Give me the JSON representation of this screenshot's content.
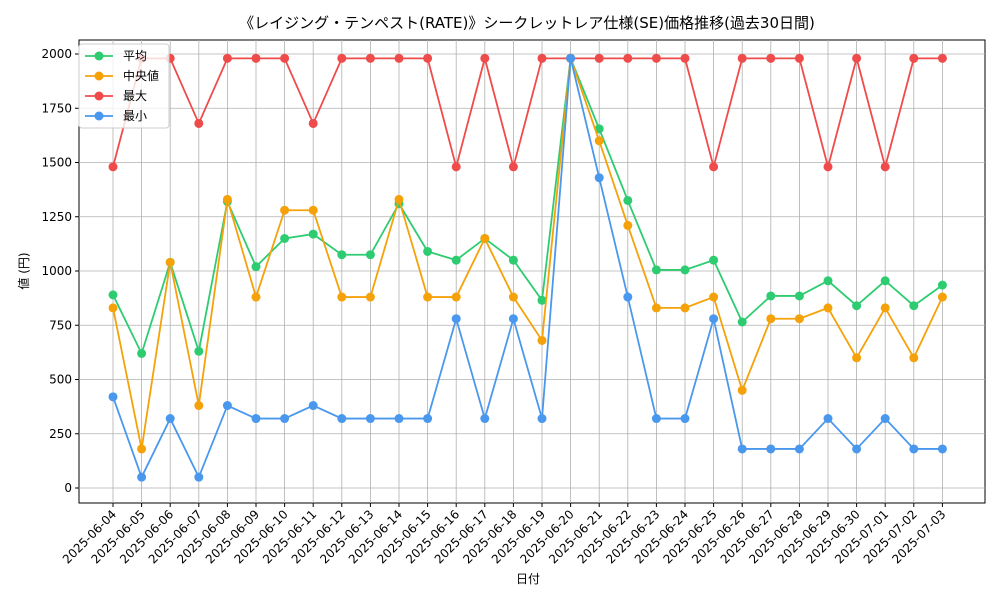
{
  "chart_data": {
    "type": "line",
    "title": "《レイジング・テンペスト(RATE)》シークレットレア仕様(SE)価格推移(過去30日間)",
    "xlabel": "日付",
    "ylabel": "値 (円)",
    "ylim": [
      0,
      2000
    ],
    "yticks": [
      0,
      250,
      500,
      750,
      1000,
      1250,
      1500,
      1750,
      2000
    ],
    "grid": true,
    "legend_position": "top-left",
    "categories": [
      "2025-06-04",
      "2025-06-05",
      "2025-06-06",
      "2025-06-07",
      "2025-06-08",
      "2025-06-09",
      "2025-06-10",
      "2025-06-11",
      "2025-06-12",
      "2025-06-13",
      "2025-06-14",
      "2025-06-15",
      "2025-06-16",
      "2025-06-17",
      "2025-06-18",
      "2025-06-19",
      "2025-06-20",
      "2025-06-21",
      "2025-06-22",
      "2025-06-23",
      "2025-06-24",
      "2025-06-25",
      "2025-06-26",
      "2025-06-27",
      "2025-06-28",
      "2025-06-29",
      "2025-06-30",
      "2025-07-01",
      "2025-07-02",
      "2025-07-03"
    ],
    "series": [
      {
        "name": "平均",
        "color": "#2ecc71",
        "values": [
          890,
          620,
          1040,
          630,
          1320,
          1020,
          1150,
          1170,
          1075,
          1075,
          1310,
          1090,
          1050,
          1150,
          1050,
          865,
          1980,
          1655,
          1325,
          1005,
          1005,
          1050,
          765,
          885,
          885,
          955,
          840,
          955,
          840,
          935
        ]
      },
      {
        "name": "中央値",
        "color": "#f5a20a",
        "values": [
          830,
          180,
          1040,
          380,
          1330,
          880,
          1280,
          1280,
          880,
          880,
          1330,
          880,
          880,
          1150,
          880,
          680,
          1980,
          1600,
          1210,
          830,
          830,
          880,
          450,
          780,
          780,
          830,
          600,
          830,
          600,
          880
        ]
      },
      {
        "name": "最大",
        "color": "#ef4b4b",
        "values": [
          1480,
          1980,
          1980,
          1680,
          1980,
          1980,
          1980,
          1680,
          1980,
          1980,
          1980,
          1980,
          1480,
          1980,
          1480,
          1980,
          1980,
          1980,
          1980,
          1980,
          1980,
          1480,
          1980,
          1980,
          1980,
          1480,
          1980,
          1480,
          1980,
          1980
        ]
      },
      {
        "name": "最小",
        "color": "#4a98ee",
        "values": [
          420,
          50,
          320,
          50,
          380,
          320,
          320,
          380,
          320,
          320,
          320,
          320,
          780,
          320,
          780,
          320,
          1980,
          1430,
          880,
          320,
          320,
          780,
          180,
          180,
          180,
          320,
          180,
          320,
          180,
          180
        ]
      }
    ]
  }
}
